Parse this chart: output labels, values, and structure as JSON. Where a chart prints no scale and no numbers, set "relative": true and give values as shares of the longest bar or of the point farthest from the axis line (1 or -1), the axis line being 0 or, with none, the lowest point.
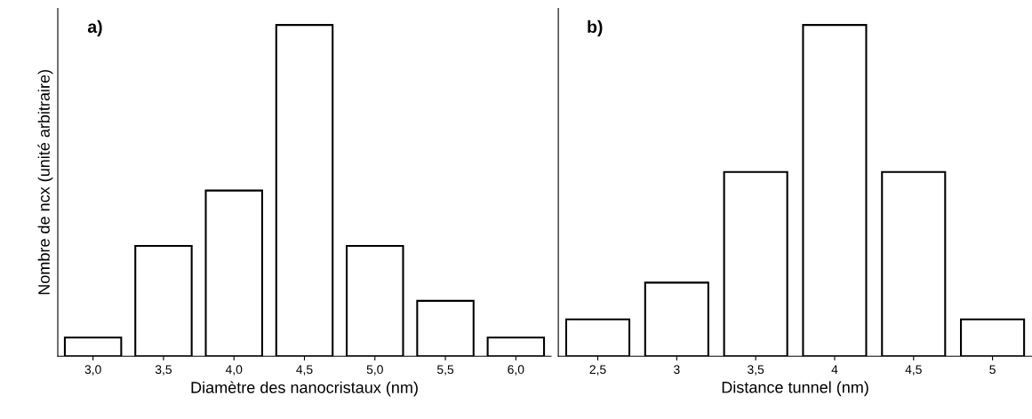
{
  "chart_data": [
    {
      "type": "bar",
      "relative": true,
      "categories": [
        "3,0",
        "3,5",
        "4,0",
        "4,5",
        "5,0",
        "5,5",
        "6,0"
      ],
      "values": [
        0.056,
        0.333,
        0.5,
        1,
        0.333,
        0.167,
        0.056
      ],
      "color": "#ffffff",
      "xlabel": "Diamètre des nanocristaux (nm)",
      "ylabel": "Nombre de ncx (unité arbitraire)",
      "annotations": [
        "a)"
      ],
      "grid": false,
      "legend": false
    },
    {
      "type": "bar",
      "relative": true,
      "categories": [
        "2,5",
        "3",
        "3,5",
        "4",
        "4,5",
        "5"
      ],
      "values": [
        0.111,
        0.222,
        0.556,
        1,
        0.556,
        0.111
      ],
      "color": "#ffffff",
      "xlabel": "Distance tunnel (nm)",
      "annotations": [
        "b)"
      ],
      "grid": false,
      "legend": false
    }
  ]
}
